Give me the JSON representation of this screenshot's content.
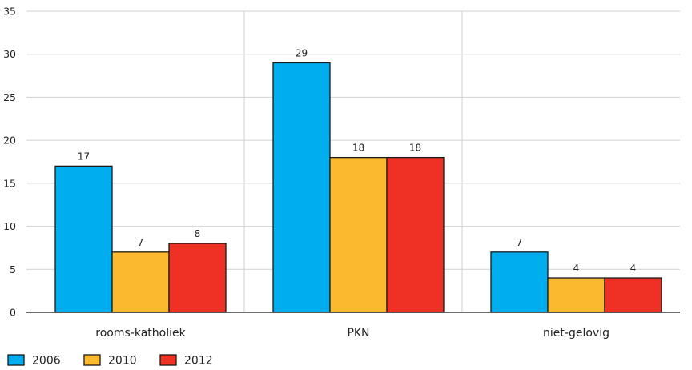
{
  "chart_data": {
    "type": "bar",
    "title": "",
    "xlabel": "",
    "ylabel": "",
    "categories": [
      "rooms-katholiek",
      "PKN",
      "niet-gelovig"
    ],
    "series": [
      {
        "name": "2006",
        "values": [
          17,
          29,
          7
        ],
        "color": "#00aeef"
      },
      {
        "name": "2010",
        "values": [
          7,
          18,
          4
        ],
        "color": "#fbb92f"
      },
      {
        "name": "2012",
        "values": [
          8,
          18,
          4
        ],
        "color": "#ef3125"
      }
    ],
    "ylim": [
      0,
      35
    ],
    "yticks": [
      0,
      5,
      10,
      15,
      20,
      25,
      30,
      35
    ],
    "grid": {
      "horizontal": true,
      "vertical_separators": true
    },
    "legend_position": "bottom-left",
    "data_labels": true
  }
}
